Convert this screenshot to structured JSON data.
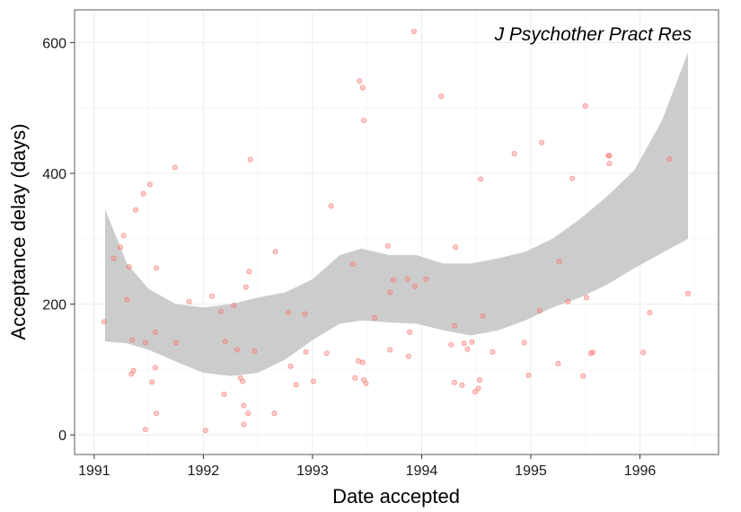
{
  "chart_data": {
    "type": "scatter",
    "title": "",
    "annotation": "J Psychother Pract Res",
    "xlabel": "Date accepted",
    "ylabel": "Acceptance delay (days)",
    "xlim": [
      1990.82,
      1996.72
    ],
    "ylim": [
      -30,
      650
    ],
    "x_ticks": [
      1991,
      1992,
      1993,
      1994,
      1995,
      1996
    ],
    "y_ticks": [
      0,
      200,
      400,
      600
    ],
    "grid": true,
    "legend": "none",
    "colors": {
      "points": "#f8766d",
      "ribbon": "#cccccc",
      "panel_border": "#7f7f7f",
      "grid_major": "#ebebeb",
      "grid_minor": "#f5f5f5"
    },
    "points": [
      [
        1991.09,
        173
      ],
      [
        1991.18,
        270
      ],
      [
        1991.24,
        287
      ],
      [
        1991.27,
        305
      ],
      [
        1991.3,
        207
      ],
      [
        1991.32,
        257
      ],
      [
        1991.34,
        93
      ],
      [
        1991.35,
        145
      ],
      [
        1991.36,
        98
      ],
      [
        1991.38,
        344
      ],
      [
        1991.45,
        369
      ],
      [
        1991.47,
        8
      ],
      [
        1991.47,
        141
      ],
      [
        1991.51,
        383
      ],
      [
        1991.53,
        81
      ],
      [
        1991.56,
        103
      ],
      [
        1991.56,
        157
      ],
      [
        1991.57,
        255
      ],
      [
        1991.57,
        33
      ],
      [
        1991.74,
        409
      ],
      [
        1991.75,
        141
      ],
      [
        1991.87,
        204
      ],
      [
        1992.02,
        7
      ],
      [
        1992.08,
        212
      ],
      [
        1992.16,
        189
      ],
      [
        1992.19,
        62
      ],
      [
        1992.2,
        143
      ],
      [
        1992.28,
        198
      ],
      [
        1992.31,
        130
      ],
      [
        1992.34,
        87
      ],
      [
        1992.36,
        82
      ],
      [
        1992.37,
        16
      ],
      [
        1992.37,
        45
      ],
      [
        1992.39,
        226
      ],
      [
        1992.41,
        33
      ],
      [
        1992.42,
        250
      ],
      [
        1992.43,
        421
      ],
      [
        1992.47,
        128
      ],
      [
        1992.65,
        33
      ],
      [
        1992.66,
        280
      ],
      [
        1992.78,
        187
      ],
      [
        1992.8,
        105
      ],
      [
        1992.85,
        77
      ],
      [
        1992.93,
        185
      ],
      [
        1992.94,
        127
      ],
      [
        1993.01,
        82
      ],
      [
        1993.13,
        125
      ],
      [
        1993.17,
        350
      ],
      [
        1993.37,
        261
      ],
      [
        1993.39,
        87
      ],
      [
        1993.42,
        113
      ],
      [
        1993.43,
        541
      ],
      [
        1993.46,
        531
      ],
      [
        1993.47,
        481
      ],
      [
        1993.46,
        111
      ],
      [
        1993.47,
        84
      ],
      [
        1993.49,
        79
      ],
      [
        1993.57,
        179
      ],
      [
        1993.69,
        289
      ],
      [
        1993.71,
        130
      ],
      [
        1993.71,
        218
      ],
      [
        1993.74,
        237
      ],
      [
        1993.87,
        238
      ],
      [
        1993.88,
        120
      ],
      [
        1993.89,
        157
      ],
      [
        1993.93,
        617
      ],
      [
        1993.94,
        227
      ],
      [
        1994.04,
        238
      ],
      [
        1994.18,
        518
      ],
      [
        1994.27,
        138
      ],
      [
        1994.3,
        80
      ],
      [
        1994.3,
        167
      ],
      [
        1994.31,
        287
      ],
      [
        1994.37,
        76
      ],
      [
        1994.39,
        140
      ],
      [
        1994.42,
        131
      ],
      [
        1994.46,
        142
      ],
      [
        1994.49,
        66
      ],
      [
        1994.52,
        71
      ],
      [
        1994.53,
        84
      ],
      [
        1994.54,
        391
      ],
      [
        1994.56,
        182
      ],
      [
        1994.65,
        127
      ],
      [
        1994.85,
        430
      ],
      [
        1994.94,
        141
      ],
      [
        1994.98,
        91
      ],
      [
        1995.08,
        190
      ],
      [
        1995.1,
        447
      ],
      [
        1995.25,
        109
      ],
      [
        1995.26,
        265
      ],
      [
        1995.34,
        204
      ],
      [
        1995.38,
        392
      ],
      [
        1995.48,
        90
      ],
      [
        1995.5,
        503
      ],
      [
        1995.51,
        210
      ],
      [
        1995.55,
        125
      ],
      [
        1995.57,
        126
      ],
      [
        1995.71,
        427
      ],
      [
        1995.72,
        415
      ],
      [
        1995.72,
        427
      ],
      [
        1996.03,
        126
      ],
      [
        1996.09,
        187
      ],
      [
        1996.27,
        422
      ],
      [
        1996.44,
        216
      ]
    ],
    "smooth_ribbon": {
      "x": [
        1991.1,
        1991.3,
        1991.5,
        1991.75,
        1992.0,
        1992.25,
        1992.5,
        1992.75,
        1993.0,
        1993.25,
        1993.45,
        1993.7,
        1993.95,
        1994.2,
        1994.45,
        1994.7,
        1994.95,
        1995.2,
        1995.45,
        1995.7,
        1995.95,
        1996.2,
        1996.44
      ],
      "lower": [
        143,
        140,
        130,
        112,
        95,
        90,
        95,
        115,
        145,
        170,
        175,
        172,
        170,
        160,
        152,
        160,
        175,
        195,
        210,
        230,
        255,
        278,
        300
      ],
      "upper": [
        345,
        262,
        223,
        200,
        195,
        200,
        210,
        218,
        238,
        275,
        285,
        275,
        275,
        262,
        262,
        270,
        280,
        300,
        330,
        365,
        405,
        480,
        585
      ]
    }
  }
}
